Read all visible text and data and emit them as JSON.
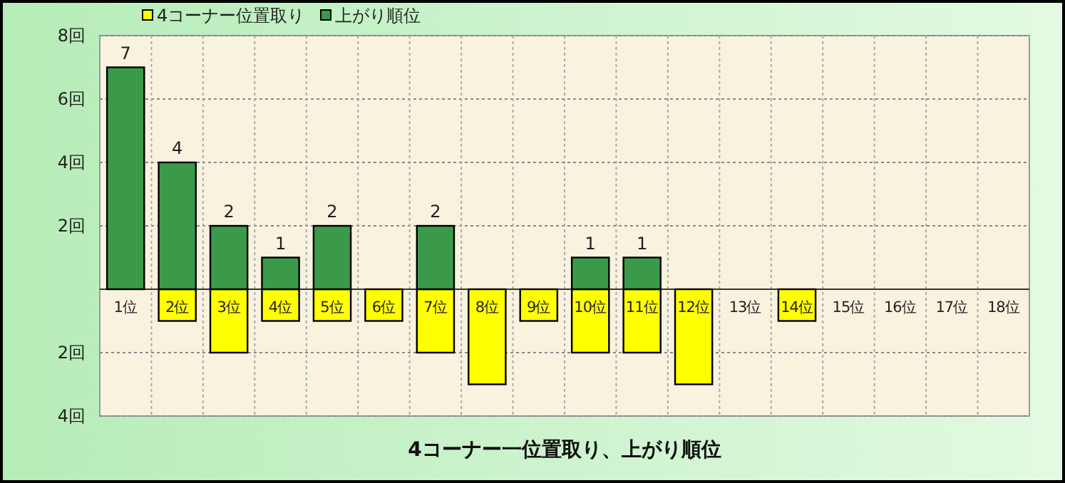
{
  "chart_data": {
    "type": "bar",
    "title": "4コーナー一位置取り、上がり順位",
    "categories": [
      "1位",
      "2位",
      "3位",
      "4位",
      "5位",
      "6位",
      "7位",
      "8位",
      "9位",
      "10位",
      "11位",
      "12位",
      "13位",
      "14位",
      "15位",
      "16位",
      "17位",
      "18位"
    ],
    "series": [
      {
        "name": "4コーナー位置取り",
        "color": "#ffff00",
        "values": [
          0,
          -1,
          -2,
          -1,
          -1,
          -1,
          -2,
          -3,
          -1,
          -2,
          -2,
          -3,
          0,
          -1,
          0,
          0,
          0,
          0
        ]
      },
      {
        "name": "上がり順位",
        "color": "#3a9a4a",
        "values": [
          7,
          4,
          2,
          1,
          2,
          0,
          2,
          0,
          0,
          1,
          1,
          0,
          0,
          0,
          0,
          0,
          0,
          0
        ],
        "value_labels": [
          "7",
          "4",
          "2",
          "1",
          "2",
          null,
          "2",
          null,
          null,
          "1",
          "1",
          null,
          null,
          null,
          null,
          null,
          null,
          null
        ]
      }
    ],
    "ylim": [
      -4,
      8
    ],
    "yticks": [
      {
        "value": -4,
        "label": "4回"
      },
      {
        "value": -2,
        "label": "2回"
      },
      {
        "value": 0,
        "label": null
      },
      {
        "value": 2,
        "label": "2回"
      },
      {
        "value": 4,
        "label": "4回"
      },
      {
        "value": 6,
        "label": "6回"
      },
      {
        "value": 8,
        "label": "8回"
      }
    ],
    "grid": true,
    "legend": "top"
  }
}
